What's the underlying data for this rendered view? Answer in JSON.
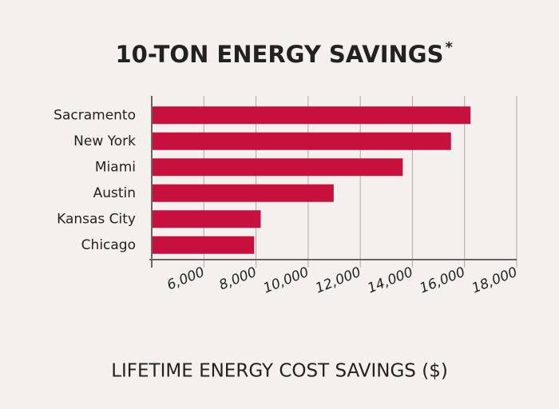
{
  "chart_data": {
    "type": "bar",
    "orientation": "horizontal",
    "title": "10-TON ENERGY SAVINGS",
    "title_note": "*",
    "xlabel": "LIFETIME ENERGY COST SAVINGS ($)",
    "categories": [
      "Sacramento",
      "New York",
      "Miami",
      "Austin",
      "Kansas City",
      "Chicago"
    ],
    "values": [
      16200,
      15450,
      13600,
      10950,
      8150,
      7900
    ],
    "color": "#c8103f",
    "xlim": [
      4000,
      18000
    ],
    "xticks": [
      {
        "value": 6000,
        "label": "6,000"
      },
      {
        "value": 8000,
        "label": "8,000"
      },
      {
        "value": 10000,
        "label": "10,000"
      },
      {
        "value": 12000,
        "label": "12,000"
      },
      {
        "value": 14000,
        "label": "14,000"
      },
      {
        "value": 16000,
        "label": "16,000"
      },
      {
        "value": 18000,
        "label": "18,000"
      }
    ],
    "grid": true
  }
}
